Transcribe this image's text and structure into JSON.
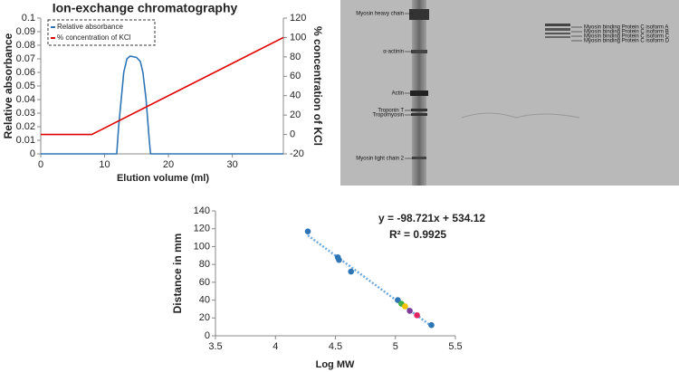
{
  "chart_data": [
    {
      "type": "line",
      "title": "Ion-exchange chromatography",
      "xlabel": "Elution volume (ml)",
      "ylabel": "Relative absorbance",
      "y2label": "% concentration of KCl",
      "xlim": [
        0,
        38
      ],
      "xticks": [
        0,
        10,
        20,
        30
      ],
      "ylim": [
        0,
        0.1
      ],
      "yticks": [
        0,
        0.01,
        0.02,
        0.03,
        0.04,
        0.05,
        0.06,
        0.07,
        0.08,
        0.09,
        0.1
      ],
      "y2lim": [
        -20,
        120
      ],
      "y2ticks": [
        -20,
        0,
        20,
        40,
        60,
        80,
        100,
        120
      ],
      "legend": "top-left",
      "series": [
        {
          "name": "Relative absorbance",
          "color": "#2e75b6",
          "x": [
            0,
            11.9,
            12.2,
            12.6,
            13,
            13.5,
            14,
            15,
            15.6,
            16,
            16.5,
            17,
            17.2,
            38
          ],
          "values": [
            0,
            0,
            0.02,
            0.04,
            0.06,
            0.07,
            0.072,
            0.071,
            0.068,
            0.06,
            0.04,
            0.01,
            0,
            0
          ]
        },
        {
          "name": "% concentration of KCl",
          "color": "#e00000",
          "axis": "y2",
          "x": [
            0,
            8,
            38
          ],
          "values": [
            0,
            0,
            100
          ]
        }
      ]
    },
    {
      "type": "scatter",
      "xlabel": "Log MW",
      "ylabel": "Distance in mm",
      "xlim": [
        3.5,
        5.5
      ],
      "xticks": [
        3.5,
        4,
        4.5,
        5,
        5.5
      ],
      "ylim": [
        0,
        140
      ],
      "yticks": [
        0,
        20,
        40,
        60,
        80,
        100,
        120,
        140
      ],
      "series": [
        {
          "x": [
            4.27,
            4.52,
            4.53,
            4.63,
            5.02,
            5.05,
            5.08,
            5.12,
            5.18,
            5.3
          ],
          "values": [
            117,
            88,
            85,
            72,
            40,
            36,
            33,
            28,
            23,
            12
          ],
          "colors": [
            "#2e75b6",
            "#2e75b6",
            "#2e75b6",
            "#2e75b6",
            "#2e75b6",
            "#3fae49",
            "#f2c200",
            "#7b3f99",
            "#e0245e",
            "#2e75b6"
          ]
        }
      ],
      "trendline": {
        "slope": -98.721,
        "intercept": 534.12,
        "color": "#6fa8dc"
      },
      "annotations": [
        "y = -98.721x + 534.12",
        "R² = 0.9925"
      ]
    }
  ],
  "gel": {
    "left_labels": [
      "Myosin heavy chain",
      "α-actinin",
      "Actin",
      "Troponin T",
      "Tropomyosin",
      "Myosin light chain 2"
    ],
    "right_labels": [
      "Myosin binding Protein C isoform A",
      "Myosin binding Protein C isoform B",
      "Myosin binding Protein C isoform C",
      "Myosin binding Protein C isoform D"
    ]
  }
}
